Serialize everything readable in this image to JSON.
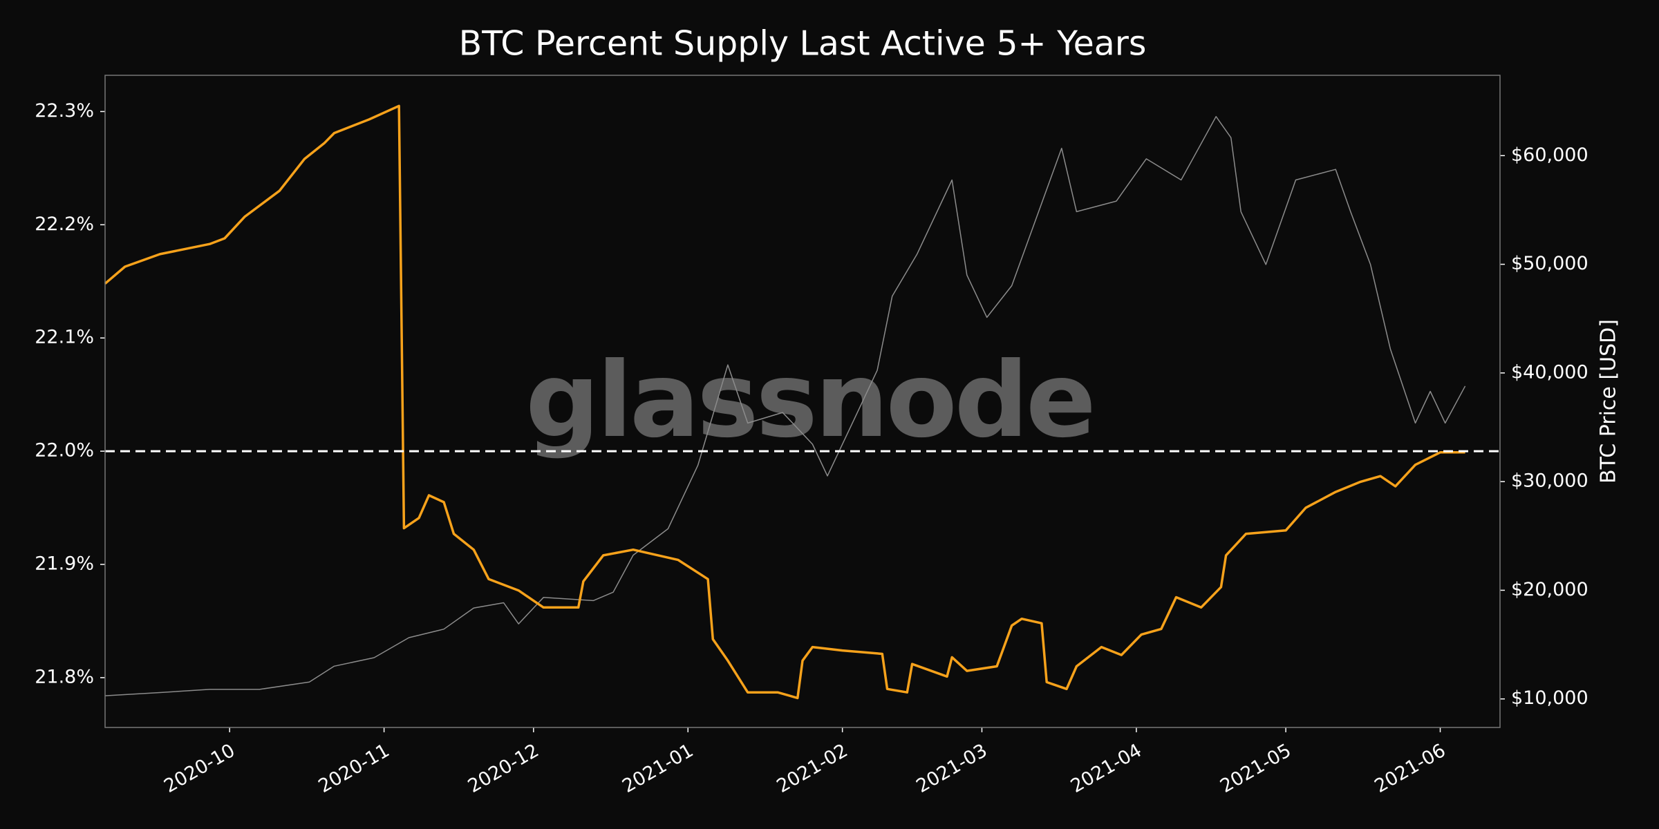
{
  "chart_data": {
    "type": "line",
    "title": "BTC Percent Supply Last Active 5+ Years",
    "watermark": "glassnode",
    "y2_label": "BTC Price [USD]",
    "xlim": [
      "2020-09-06",
      "2021-06-13"
    ],
    "xticks": [
      {
        "value": "2020-10-01",
        "label": "2020-10"
      },
      {
        "value": "2020-11-01",
        "label": "2020-11"
      },
      {
        "value": "2020-12-01",
        "label": "2020-12"
      },
      {
        "value": "2021-01-01",
        "label": "2021-01"
      },
      {
        "value": "2021-02-01",
        "label": "2021-02"
      },
      {
        "value": "2021-03-01",
        "label": "2021-03"
      },
      {
        "value": "2021-04-01",
        "label": "2021-04"
      },
      {
        "value": "2021-05-01",
        "label": "2021-05"
      },
      {
        "value": "2021-06-01",
        "label": "2021-06"
      }
    ],
    "ylim": [
      21.756,
      22.332
    ],
    "yticks": [
      {
        "value": 21.8,
        "label": "21.8%"
      },
      {
        "value": 21.9,
        "label": "21.9%"
      },
      {
        "value": 22.0,
        "label": "22.0%"
      },
      {
        "value": 22.1,
        "label": "22.1%"
      },
      {
        "value": 22.2,
        "label": "22.2%"
      },
      {
        "value": 22.3,
        "label": "22.3%"
      }
    ],
    "y2lim": [
      7374,
      67393
    ],
    "y2ticks": [
      {
        "value": 10000,
        "label": "$10,000"
      },
      {
        "value": 20000,
        "label": "$20,000"
      },
      {
        "value": 30000,
        "label": "$30,000"
      },
      {
        "value": 40000,
        "label": "$40,000"
      },
      {
        "value": 50000,
        "label": "$50,000"
      },
      {
        "value": 60000,
        "label": "$60,000"
      }
    ],
    "hline": 22.0,
    "series": [
      {
        "name": "BTC Price",
        "color": "#8c8c8c",
        "axis": "y2",
        "x": [
          "2020-09-06",
          "2020-09-17",
          "2020-09-27",
          "2020-10-07",
          "2020-10-17",
          "2020-10-22",
          "2020-10-30",
          "2020-11-06",
          "2020-11-13",
          "2020-11-19",
          "2020-11-25",
          "2020-11-28",
          "2020-12-03",
          "2020-12-13",
          "2020-12-17",
          "2020-12-21",
          "2020-12-28",
          "2021-01-03",
          "2021-01-09",
          "2021-01-13",
          "2021-01-20",
          "2021-01-26",
          "2021-01-29",
          "2021-02-03",
          "2021-02-08",
          "2021-02-11",
          "2021-02-16",
          "2021-02-23",
          "2021-02-26",
          "2021-03-02",
          "2021-03-07",
          "2021-03-17",
          "2021-03-20",
          "2021-03-28",
          "2021-04-03",
          "2021-04-10",
          "2021-04-17",
          "2021-04-20",
          "2021-04-22",
          "2021-04-27",
          "2021-05-03",
          "2021-05-11",
          "2021-05-14",
          "2021-05-18",
          "2021-05-22",
          "2021-05-27",
          "2021-05-30",
          "2021-06-02",
          "2021-06-06"
        ],
        "values": [
          10292,
          10584,
          10875,
          10875,
          11556,
          13016,
          13794,
          15642,
          16420,
          18366,
          18852,
          16907,
          19339,
          19047,
          19825,
          23230,
          25661,
          31498,
          40739,
          35389,
          36362,
          33444,
          30525,
          35389,
          40253,
          47062,
          50953,
          57763,
          49008,
          45117,
          48035,
          60681,
          54844,
          55817,
          59708,
          57763,
          63599,
          61654,
          54844,
          49981,
          57763,
          58735,
          54844,
          49981,
          42198,
          35389,
          38307,
          35389,
          38793
        ]
      },
      {
        "name": "Percent Supply Last Active 5+ Years",
        "color": "#f7a21b",
        "axis": "y",
        "x": [
          "2020-09-06",
          "2020-09-10",
          "2020-09-17",
          "2020-09-27",
          "2020-09-30",
          "2020-10-04",
          "2020-10-11",
          "2020-10-16",
          "2020-10-20",
          "2020-10-22",
          "2020-10-29",
          "2020-11-04",
          "2020-11-05",
          "2020-11-08",
          "2020-11-10",
          "2020-11-13",
          "2020-11-15",
          "2020-11-19",
          "2020-11-22",
          "2020-11-28",
          "2020-12-03",
          "2020-12-10",
          "2020-12-11",
          "2020-12-15",
          "2020-12-21",
          "2020-12-30",
          "2021-01-05",
          "2021-01-06",
          "2021-01-09",
          "2021-01-13",
          "2021-01-19",
          "2021-01-23",
          "2021-01-24",
          "2021-01-26",
          "2021-02-01",
          "2021-02-09",
          "2021-02-10",
          "2021-02-14",
          "2021-02-15",
          "2021-02-22",
          "2021-02-23",
          "2021-02-26",
          "2021-03-04",
          "2021-03-07",
          "2021-03-09",
          "2021-03-13",
          "2021-03-14",
          "2021-03-18",
          "2021-03-20",
          "2021-03-25",
          "2021-03-29",
          "2021-04-02",
          "2021-04-06",
          "2021-04-09",
          "2021-04-14",
          "2021-04-18",
          "2021-04-19",
          "2021-04-23",
          "2021-05-01",
          "2021-05-05",
          "2021-05-11",
          "2021-05-16",
          "2021-05-20",
          "2021-05-23",
          "2021-05-27",
          "2021-06-01",
          "2021-06-06"
        ],
        "values": [
          22.148,
          22.163,
          22.174,
          22.183,
          22.188,
          22.207,
          22.23,
          22.258,
          22.272,
          22.281,
          22.293,
          22.305,
          21.932,
          21.941,
          21.961,
          21.955,
          21.927,
          21.913,
          21.887,
          21.877,
          21.862,
          21.862,
          21.885,
          21.908,
          21.913,
          21.904,
          21.887,
          21.834,
          21.815,
          21.787,
          21.787,
          21.782,
          21.815,
          21.827,
          21.824,
          21.821,
          21.79,
          21.787,
          21.812,
          21.801,
          21.818,
          21.806,
          21.81,
          21.846,
          21.852,
          21.848,
          21.796,
          21.79,
          21.81,
          21.827,
          21.82,
          21.838,
          21.843,
          21.871,
          21.862,
          21.88,
          21.908,
          21.927,
          21.93,
          21.95,
          21.964,
          21.973,
          21.978,
          21.969,
          21.988,
          21.999,
          21.999
        ]
      }
    ]
  }
}
